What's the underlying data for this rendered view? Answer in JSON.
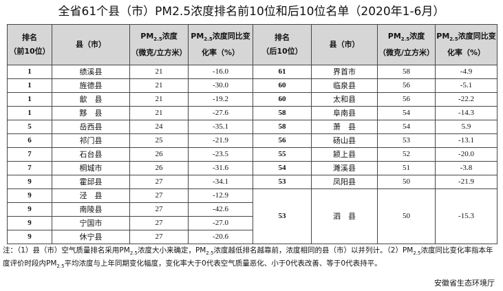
{
  "title": "全省61个县（市）PM2.5浓度排名前10位和后10位名单（2020年1-6月）",
  "header": [
    [
      [
        "排名"
      ],
      [
        "（前10位）"
      ]
    ],
    [
      [
        "县（市）"
      ]
    ],
    [
      [
        "PM",
        {
          "sub": "2.5"
        },
        "浓度"
      ],
      [
        "（微克/立方米）"
      ]
    ],
    [
      [
        "PM",
        {
          "sub": "2.5"
        },
        "浓度同比变"
      ],
      [
        "化率（%）"
      ]
    ],
    [
      [
        "排名"
      ],
      [
        "（后10位）"
      ]
    ],
    [
      [
        "县（市）"
      ]
    ],
    [
      [
        "PM",
        {
          "sub": "2.5"
        },
        "浓度"
      ],
      [
        "（微克/立方米）"
      ]
    ],
    [
      [
        "PM",
        {
          "sub": "2.5"
        },
        "浓度同比变"
      ],
      [
        "化率（%）"
      ]
    ]
  ],
  "left_rows": [
    [
      "1",
      "绩溪县",
      "21",
      "-16.0"
    ],
    [
      "1",
      "旌德县",
      "21",
      "-30.0"
    ],
    [
      "1",
      "歙　县",
      "21",
      "-19.2"
    ],
    [
      "1",
      "黟　县",
      "21",
      "-27.6"
    ],
    [
      "5",
      "岳西县",
      "24",
      "-35.1"
    ],
    [
      "6",
      "祁门县",
      "25",
      "-21.9"
    ],
    [
      "7",
      "石台县",
      "26",
      "-23.5"
    ],
    [
      "7",
      "桐城市",
      "26",
      "-31.6"
    ],
    [
      "9",
      "霍邱县",
      "27",
      "-34.1"
    ],
    [
      "9",
      "泾　县",
      "27",
      "-12.9"
    ],
    [
      "9",
      "南陵县",
      "27",
      "-42.6"
    ],
    [
      "9",
      "宁国市",
      "27",
      "-27.0"
    ],
    [
      "9",
      "休宁县",
      "27",
      "-20.6"
    ]
  ],
  "right_rows": [
    [
      "61",
      "界首市",
      "58",
      "-4.9"
    ],
    [
      "60",
      "临泉县",
      "56",
      "-5.1"
    ],
    [
      "60",
      "太和县",
      "56",
      "-22.2"
    ],
    [
      "58",
      "阜南县",
      "54",
      "-14.3"
    ],
    [
      "58",
      "萧　县",
      "54",
      "5.9"
    ],
    [
      "56",
      "砀山县",
      "53",
      "-13.1"
    ],
    [
      "55",
      "颍上县",
      "52",
      "-20.0"
    ],
    [
      "54",
      "濉溪县",
      "51",
      "-3.8"
    ],
    [
      "53",
      "凤阳县",
      "50",
      "-21.9"
    ],
    [
      "53",
      "泗　县",
      "50",
      "-15.3"
    ]
  ],
  "note": [
    "注：（1）县（市）空气质量排名采用PM",
    {
      "sub": "2.5"
    },
    "浓度大小来确定，PM",
    {
      "sub": "2.5"
    },
    "浓度越低排名越靠前，浓度相同的县（市）以并列计。（2）PM",
    {
      "sub": "2.5"
    },
    "浓度同比变化率指本年度评价时段内PM",
    {
      "sub": "2.5"
    },
    "平均浓度与上年同期变化幅度，变化率大于0代表空气质量恶化、小于0代表改善、等于0代表持平。"
  ],
  "source": "安徽省生态环境厅"
}
